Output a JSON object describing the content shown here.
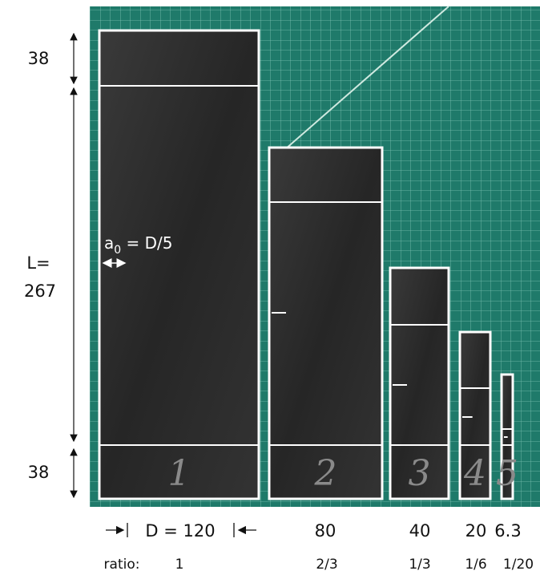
{
  "annotations": {
    "top_length": "38",
    "bottom_length": "38",
    "length_label": "L=",
    "length_value": "267",
    "notch_symbol": "a",
    "notch_subscript": "0",
    "notch_formula": " = D/5",
    "ratio_label": "ratio:"
  },
  "specimens": [
    {
      "number": "1",
      "width": "D = 120",
      "ratio": "1"
    },
    {
      "number": "2",
      "width": "80",
      "ratio": "2/3"
    },
    {
      "number": "3",
      "width": "40",
      "ratio": "1/3"
    },
    {
      "number": "4",
      "width": "20",
      "ratio": "1/6"
    },
    {
      "number": "5",
      "width": "6.3",
      "ratio": "1/20"
    }
  ]
}
